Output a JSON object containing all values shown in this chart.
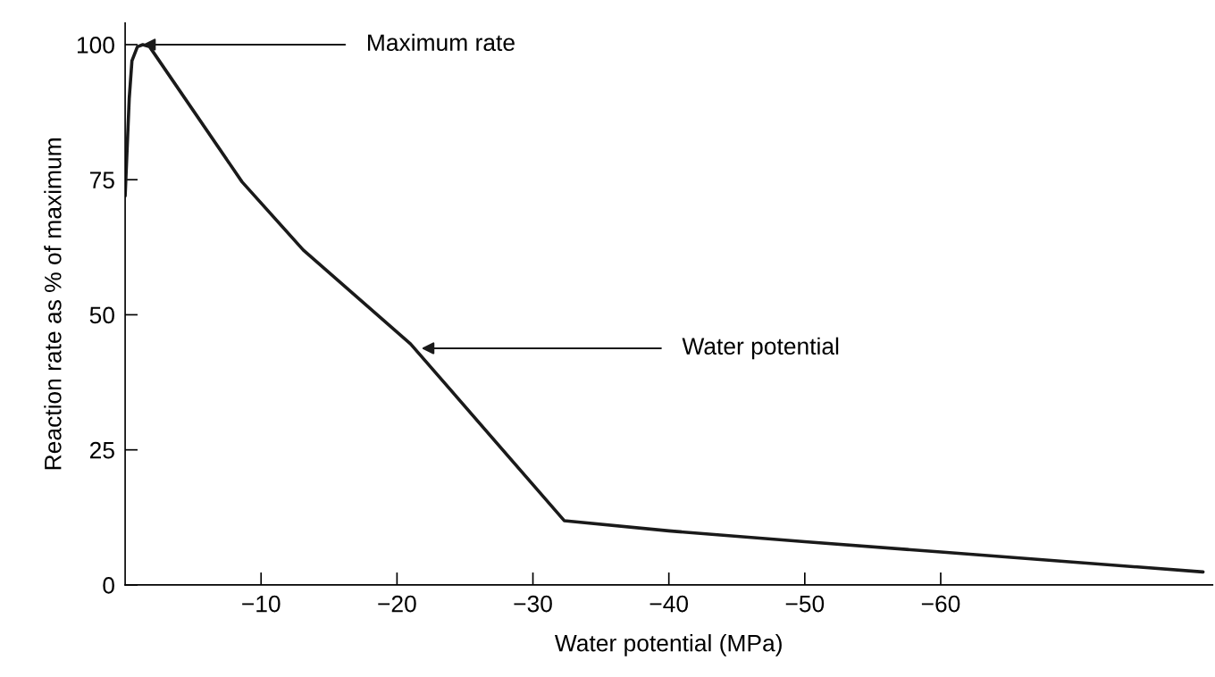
{
  "chart_data": {
    "type": "line",
    "xlabel": "Water potential (MPa)",
    "ylabel": "Reaction rate as % of maximum",
    "series": [
      {
        "color": "#1a1a1a",
        "x": [
          0,
          -0.3,
          -0.5,
          -0.9,
          -1.3,
          -1.8,
          -8.6,
          -13.1,
          -21,
          -32.3,
          -40,
          -50,
          -60,
          -79.3
        ],
        "values": [
          72,
          90,
          97,
          99.6,
          100,
          99.6,
          74.6,
          62,
          44.6,
          11.9,
          10,
          8,
          6.1,
          2.4
        ]
      }
    ],
    "xlim": [
      0,
      -80
    ],
    "ylim": [
      0,
      104
    ],
    "xticks": [
      -10,
      -20,
      -30,
      -40,
      -50,
      -60
    ],
    "yticks": [
      0,
      25,
      50,
      75,
      100
    ],
    "annotations": [
      {
        "text": "Maximum rate",
        "x": -1.3,
        "y": 100
      },
      {
        "text": "Water potential",
        "x": -21.8,
        "y": 43.8
      }
    ],
    "grid": false,
    "marker": "none",
    "line_style": "solid"
  }
}
